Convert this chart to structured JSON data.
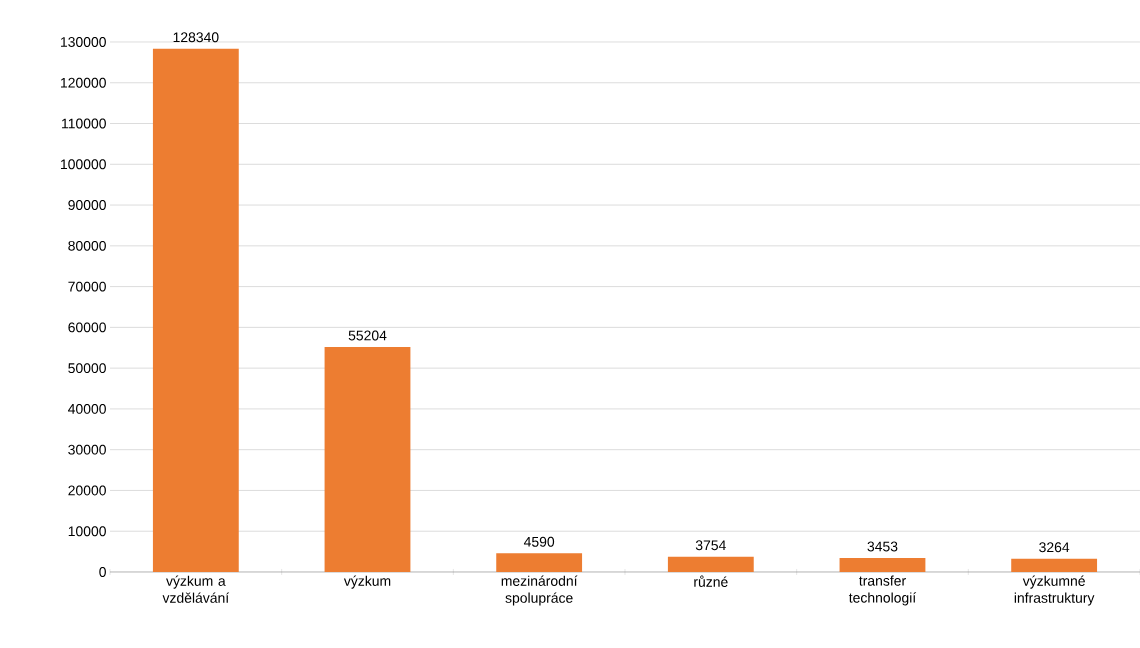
{
  "chart_data": {
    "type": "bar",
    "categories": [
      "výzkum a vzdělávání",
      "výzkum",
      "mezinárodní spolupráce",
      "různé",
      "transfer technologií",
      "výzkumné infrastruktury"
    ],
    "values": [
      128340,
      55204,
      4590,
      3754,
      3453,
      3264
    ],
    "color": "#ed7d31",
    "ylim": [
      0,
      130000
    ],
    "yticks": [
      0,
      10000,
      20000,
      30000,
      40000,
      50000,
      60000,
      70000,
      80000,
      90000,
      100000,
      110000,
      120000,
      130000
    ],
    "grid": "y",
    "data_labels": true
  }
}
